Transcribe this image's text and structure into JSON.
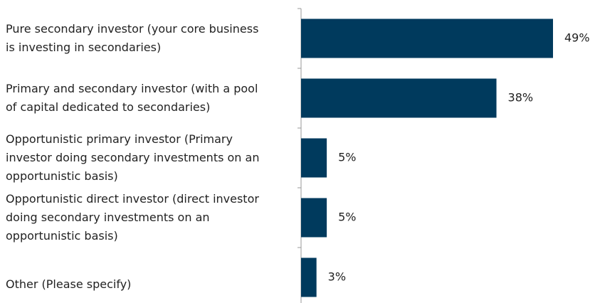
{
  "chart_data": {
    "type": "hbar",
    "categories": [
      [
        "Pure secondary investor (your core business",
        "is investing in secondaries)"
      ],
      [
        "Primary and secondary investor (with a pool",
        "of capital dedicated to secondaries)"
      ],
      [
        "Opportunistic primary investor (Primary",
        "investor doing secondary investments on an",
        "opportunistic basis)"
      ],
      [
        "Opportunistic direct investor (direct investor",
        "doing secondary investments on an",
        "opportunistic basis)"
      ],
      [
        "Other (Please specify)"
      ]
    ],
    "values": [
      49,
      38,
      5,
      5,
      3
    ],
    "value_labels": [
      "49%",
      "38%",
      "5%",
      "5%",
      "3%"
    ],
    "color": "#003a5d"
  }
}
